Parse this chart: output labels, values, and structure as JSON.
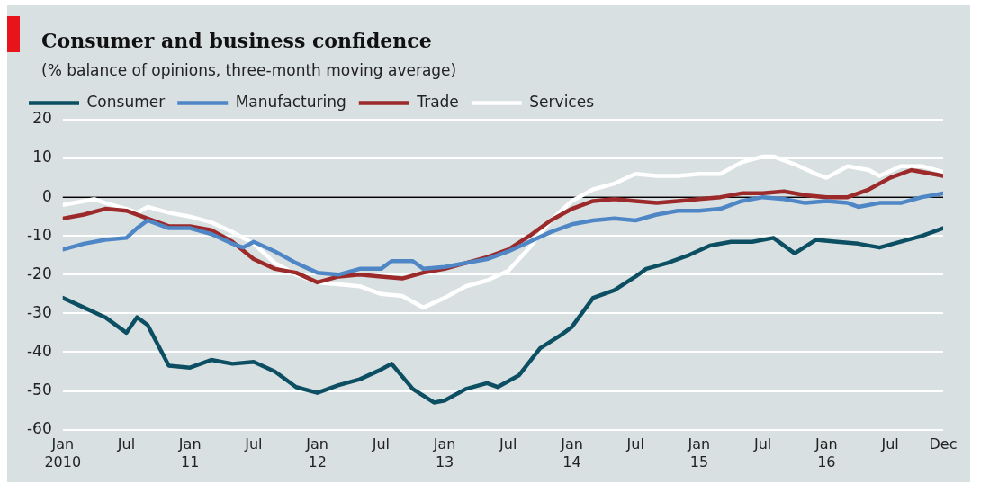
{
  "chart_data": {
    "type": "line",
    "title": "Consumer and business confidence",
    "subtitle": "(% balance of opinions, three-month moving average)",
    "xlim": [
      "2010-01",
      "2016-12"
    ],
    "xticks": [
      {
        "value": "2010-01",
        "label": "Jan\n2010"
      },
      {
        "value": "2010-07",
        "label": "Jul"
      },
      {
        "value": "2011-01",
        "label": "Jan\n11"
      },
      {
        "value": "2011-07",
        "label": "Jul"
      },
      {
        "value": "2012-01",
        "label": "Jan\n12"
      },
      {
        "value": "2012-07",
        "label": "Jul"
      },
      {
        "value": "2013-01",
        "label": "Jan\n13"
      },
      {
        "value": "2013-07",
        "label": "Jul"
      },
      {
        "value": "2014-01",
        "label": "Jan\n14"
      },
      {
        "value": "2014-07",
        "label": "Jul"
      },
      {
        "value": "2015-01",
        "label": "Jan\n15"
      },
      {
        "value": "2015-07",
        "label": "Jul"
      },
      {
        "value": "2016-01",
        "label": "Jan\n16"
      },
      {
        "value": "2016-07",
        "label": "Jul"
      },
      {
        "value": "2016-12",
        "label": "Dec"
      }
    ],
    "ylim": [
      -60,
      20
    ],
    "yticks": [
      -60,
      -50,
      -40,
      -30,
      -20,
      -10,
      0,
      10,
      20
    ],
    "grid": "y",
    "legend": "top left",
    "marker": "none",
    "line_style": "solid",
    "ref_lines": [
      {
        "axis": "y",
        "value": 0,
        "color": "#000000"
      }
    ],
    "series": [
      {
        "name": "Consumer",
        "color": "#0d4f62",
        "x": [
          "2010-01",
          "2010-03",
          "2010-05",
          "2010-07",
          "2010-08",
          "2010-09",
          "2010-11",
          "2011-01",
          "2011-03",
          "2011-05",
          "2011-07",
          "2011-09",
          "2011-11",
          "2012-01",
          "2012-03",
          "2012-05",
          "2012-07",
          "2012-08",
          "2012-10",
          "2012-12",
          "2013-01",
          "2013-03",
          "2013-05",
          "2013-06",
          "2013-08",
          "2013-10",
          "2013-12",
          "2014-01",
          "2014-03",
          "2014-05",
          "2014-07",
          "2014-08",
          "2014-10",
          "2014-12",
          "2015-02",
          "2015-04",
          "2015-06",
          "2015-08",
          "2015-10",
          "2015-12",
          "2016-02",
          "2016-04",
          "2016-06",
          "2016-08",
          "2016-10",
          "2016-12"
        ],
        "values": [
          -26,
          -28.5,
          -31,
          -35,
          -31,
          -33,
          -43.5,
          -44,
          -42,
          -43,
          -42.5,
          -45,
          -49,
          -50.5,
          -48.5,
          -47,
          -44.5,
          -43,
          -49.5,
          -53,
          -52.5,
          -49.5,
          -48,
          -49,
          -46,
          -39,
          -35.5,
          -33.5,
          -26,
          -24,
          -20.5,
          -18.5,
          -17,
          -15,
          -12.5,
          -11.5,
          -11.5,
          -10.5,
          -14.5,
          -11,
          -11.5,
          -12,
          -13,
          -11.5,
          -10,
          -8
        ]
      },
      {
        "name": "Manufacturing",
        "color": "#4f86c6",
        "x": [
          "2010-01",
          "2010-03",
          "2010-05",
          "2010-07",
          "2010-08",
          "2010-09",
          "2010-11",
          "2011-01",
          "2011-03",
          "2011-05",
          "2011-06",
          "2011-07",
          "2011-09",
          "2011-11",
          "2012-01",
          "2012-03",
          "2012-05",
          "2012-07",
          "2012-08",
          "2012-10",
          "2012-11",
          "2013-01",
          "2013-03",
          "2013-05",
          "2013-07",
          "2013-09",
          "2013-11",
          "2014-01",
          "2014-03",
          "2014-05",
          "2014-07",
          "2014-09",
          "2014-11",
          "2015-01",
          "2015-03",
          "2015-05",
          "2015-07",
          "2015-09",
          "2015-11",
          "2016-01",
          "2016-03",
          "2016-04",
          "2016-06",
          "2016-08",
          "2016-10",
          "2016-12"
        ],
        "values": [
          -13.5,
          -12,
          -11,
          -10.5,
          -8,
          -6,
          -8,
          -8,
          -9.5,
          -12,
          -13,
          -11.5,
          -14,
          -17,
          -19.5,
          -20,
          -18.5,
          -18.5,
          -16.5,
          -16.5,
          -18.5,
          -18,
          -17,
          -16,
          -14,
          -11.5,
          -9,
          -7,
          -6,
          -5.5,
          -6,
          -4.5,
          -3.5,
          -3.5,
          -3,
          -1,
          0,
          -0.5,
          -1.5,
          -1,
          -1.5,
          -2.5,
          -1.5,
          -1.5,
          0,
          1
        ]
      },
      {
        "name": "Trade",
        "color": "#9c2a2a",
        "x": [
          "2010-01",
          "2010-03",
          "2010-05",
          "2010-07",
          "2010-09",
          "2010-11",
          "2011-01",
          "2011-03",
          "2011-05",
          "2011-07",
          "2011-09",
          "2011-11",
          "2012-01",
          "2012-03",
          "2012-05",
          "2012-07",
          "2012-09",
          "2012-11",
          "2013-01",
          "2013-03",
          "2013-05",
          "2013-07",
          "2013-09",
          "2013-11",
          "2014-01",
          "2014-03",
          "2014-05",
          "2014-07",
          "2014-09",
          "2014-11",
          "2015-01",
          "2015-03",
          "2015-05",
          "2015-07",
          "2015-09",
          "2015-11",
          "2016-01",
          "2016-03",
          "2016-05",
          "2016-07",
          "2016-09",
          "2016-11",
          "2016-12"
        ],
        "values": [
          -5.5,
          -4.5,
          -3,
          -3.5,
          -5.5,
          -7.5,
          -7.5,
          -8.5,
          -11.5,
          -16,
          -18.5,
          -19.5,
          -22,
          -20.5,
          -20,
          -20.5,
          -21,
          -19.5,
          -18.5,
          -17,
          -15.5,
          -13.5,
          -10,
          -6,
          -3,
          -1,
          -0.5,
          -1,
          -1.5,
          -1,
          -0.5,
          0,
          1,
          1,
          1.5,
          0.5,
          0,
          0,
          2,
          5,
          7,
          6,
          5.5
        ]
      },
      {
        "name": "Services",
        "color": "#ffffff",
        "x": [
          "2010-01",
          "2010-03",
          "2010-04",
          "2010-05",
          "2010-07",
          "2010-08",
          "2010-09",
          "2010-11",
          "2011-01",
          "2011-03",
          "2011-05",
          "2011-07",
          "2011-09",
          "2011-11",
          "2012-01",
          "2012-03",
          "2012-05",
          "2012-07",
          "2012-09",
          "2012-11",
          "2013-01",
          "2013-03",
          "2013-05",
          "2013-07",
          "2013-09",
          "2013-11",
          "2014-01",
          "2014-03",
          "2014-05",
          "2014-07",
          "2014-09",
          "2014-11",
          "2015-01",
          "2015-03",
          "2015-05",
          "2015-07",
          "2015-08",
          "2015-10",
          "2015-12",
          "2016-01",
          "2016-03",
          "2016-05",
          "2016-06",
          "2016-08",
          "2016-10",
          "2016-12"
        ],
        "values": [
          -2,
          -1,
          -0.5,
          -1.5,
          -3,
          -4,
          -2.5,
          -4,
          -5,
          -6.5,
          -9,
          -12,
          -17,
          -20,
          -22,
          -22.5,
          -23,
          -25,
          -25.5,
          -28.5,
          -26,
          -23,
          -21.5,
          -19,
          -13,
          -6,
          -1,
          2,
          3.5,
          6,
          5.5,
          5.5,
          6,
          6,
          9,
          10.5,
          10.5,
          8.5,
          6,
          5,
          8,
          7,
          5.5,
          8,
          8,
          6.5
        ]
      }
    ]
  }
}
